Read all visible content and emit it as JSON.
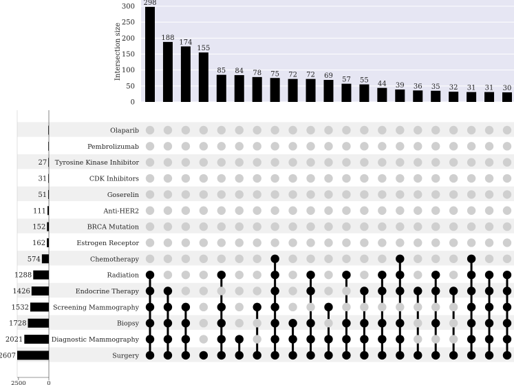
{
  "chart_data": {
    "type": "upset",
    "intersection_axis": {
      "label": "Intersection size",
      "ylim": [
        0,
        300
      ],
      "ticks": [
        0,
        50,
        100,
        150,
        200,
        250,
        300
      ]
    },
    "set_size_axis": {
      "xlim": [
        2607,
        0
      ],
      "ticks": [
        2500,
        0
      ]
    },
    "colors": {
      "bar": "#000000",
      "dot_active": "#000000",
      "dot_inactive": "#cfcfcf",
      "plot_bg": "#e6e6f3",
      "stripe": "#f0f0f0",
      "grid": "#ffffff"
    },
    "sets": [
      {
        "name": "Olaparib",
        "size": 7,
        "size_label": ""
      },
      {
        "name": "Pembrolizumab",
        "size": 3,
        "size_label": ""
      },
      {
        "name": "Tyrosine Kinase Inhibitor",
        "size": 27,
        "size_label": "27"
      },
      {
        "name": "CDK Inhibitors",
        "size": 31,
        "size_label": "31"
      },
      {
        "name": "Goserelin",
        "size": 51,
        "size_label": "51"
      },
      {
        "name": "Anti-HER2",
        "size": 111,
        "size_label": "111"
      },
      {
        "name": "BRCA Mutation",
        "size": 152,
        "size_label": "152"
      },
      {
        "name": "Estrogen Receptor",
        "size": 162,
        "size_label": "162"
      },
      {
        "name": "Chemotherapy",
        "size": 574,
        "size_label": "574"
      },
      {
        "name": "Radiation",
        "size": 1288,
        "size_label": "1288"
      },
      {
        "name": "Endocrine Therapy",
        "size": 1426,
        "size_label": "1426"
      },
      {
        "name": "Screening Mammography",
        "size": 1532,
        "size_label": "1532"
      },
      {
        "name": "Biopsy",
        "size": 1728,
        "size_label": "1728"
      },
      {
        "name": "Diagnostic Mammography",
        "size": 2021,
        "size_label": "2021"
      },
      {
        "name": "Surgery",
        "size": 2607,
        "size_label": "2607"
      }
    ],
    "intersections": [
      {
        "value": 298,
        "label": "298",
        "members": [
          "Radiation",
          "Endocrine Therapy",
          "Screening Mammography",
          "Biopsy",
          "Diagnostic Mammography",
          "Surgery"
        ]
      },
      {
        "value": 188,
        "label": "188",
        "members": [
          "Endocrine Therapy",
          "Screening Mammography",
          "Biopsy",
          "Diagnostic Mammography",
          "Surgery"
        ]
      },
      {
        "value": 174,
        "label": "174",
        "members": [
          "Screening Mammography",
          "Biopsy",
          "Diagnostic Mammography",
          "Surgery"
        ]
      },
      {
        "value": 155,
        "label": "155",
        "members": [
          "Surgery"
        ]
      },
      {
        "value": 85,
        "label": "85",
        "members": [
          "Radiation",
          "Screening Mammography",
          "Biopsy",
          "Diagnostic Mammography",
          "Surgery"
        ]
      },
      {
        "value": 84,
        "label": "84",
        "members": [
          "Diagnostic Mammography",
          "Surgery"
        ]
      },
      {
        "value": 78,
        "label": "78",
        "members": [
          "Screening Mammography",
          "Surgery"
        ]
      },
      {
        "value": 75,
        "label": "75",
        "members": [
          "Chemotherapy",
          "Radiation",
          "Endocrine Therapy",
          "Screening Mammography",
          "Biopsy",
          "Diagnostic Mammography",
          "Surgery"
        ]
      },
      {
        "value": 72,
        "label": "72",
        "members": [
          "Biopsy",
          "Diagnostic Mammography",
          "Surgery"
        ]
      },
      {
        "value": 72,
        "label": "72",
        "members": [
          "Radiation",
          "Endocrine Therapy",
          "Biopsy",
          "Diagnostic Mammography",
          "Surgery"
        ]
      },
      {
        "value": 69,
        "label": "69",
        "members": [
          "Screening Mammography",
          "Diagnostic Mammography",
          "Surgery"
        ]
      },
      {
        "value": 57,
        "label": "57",
        "members": [
          "Radiation",
          "Biopsy",
          "Diagnostic Mammography",
          "Surgery"
        ]
      },
      {
        "value": 55,
        "label": "55",
        "members": [
          "Endocrine Therapy",
          "Biopsy",
          "Diagnostic Mammography",
          "Surgery"
        ]
      },
      {
        "value": 44,
        "label": "44",
        "members": [
          "Radiation",
          "Endocrine Therapy",
          "Biopsy",
          "Diagnostic Mammography",
          "Surgery"
        ]
      },
      {
        "value": 39,
        "label": "39",
        "members": [
          "Chemotherapy",
          "Radiation",
          "Endocrine Therapy",
          "Biopsy",
          "Diagnostic Mammography",
          "Surgery"
        ]
      },
      {
        "value": 36,
        "label": "36",
        "members": [
          "Endocrine Therapy",
          "Surgery"
        ]
      },
      {
        "value": 35,
        "label": "35",
        "members": [
          "Radiation",
          "Endocrine Therapy",
          "Biopsy",
          "Surgery"
        ]
      },
      {
        "value": 32,
        "label": "32",
        "members": [
          "Endocrine Therapy",
          "Surgery"
        ]
      },
      {
        "value": 31,
        "label": "31",
        "members": [
          "Chemotherapy",
          "Radiation",
          "Endocrine Therapy",
          "Screening Mammography",
          "Biopsy",
          "Diagnostic Mammography",
          "Surgery"
        ]
      },
      {
        "value": 31,
        "label": "31",
        "members": [
          "Radiation",
          "Endocrine Therapy",
          "Screening Mammography",
          "Biopsy",
          "Diagnostic Mammography",
          "Surgery"
        ]
      },
      {
        "value": 30,
        "label": "30",
        "members": [
          "Radiation",
          "Endocrine Therapy",
          "Screening Mammography",
          "Biopsy",
          "Diagnostic Mammography",
          "Surgery"
        ]
      }
    ]
  }
}
